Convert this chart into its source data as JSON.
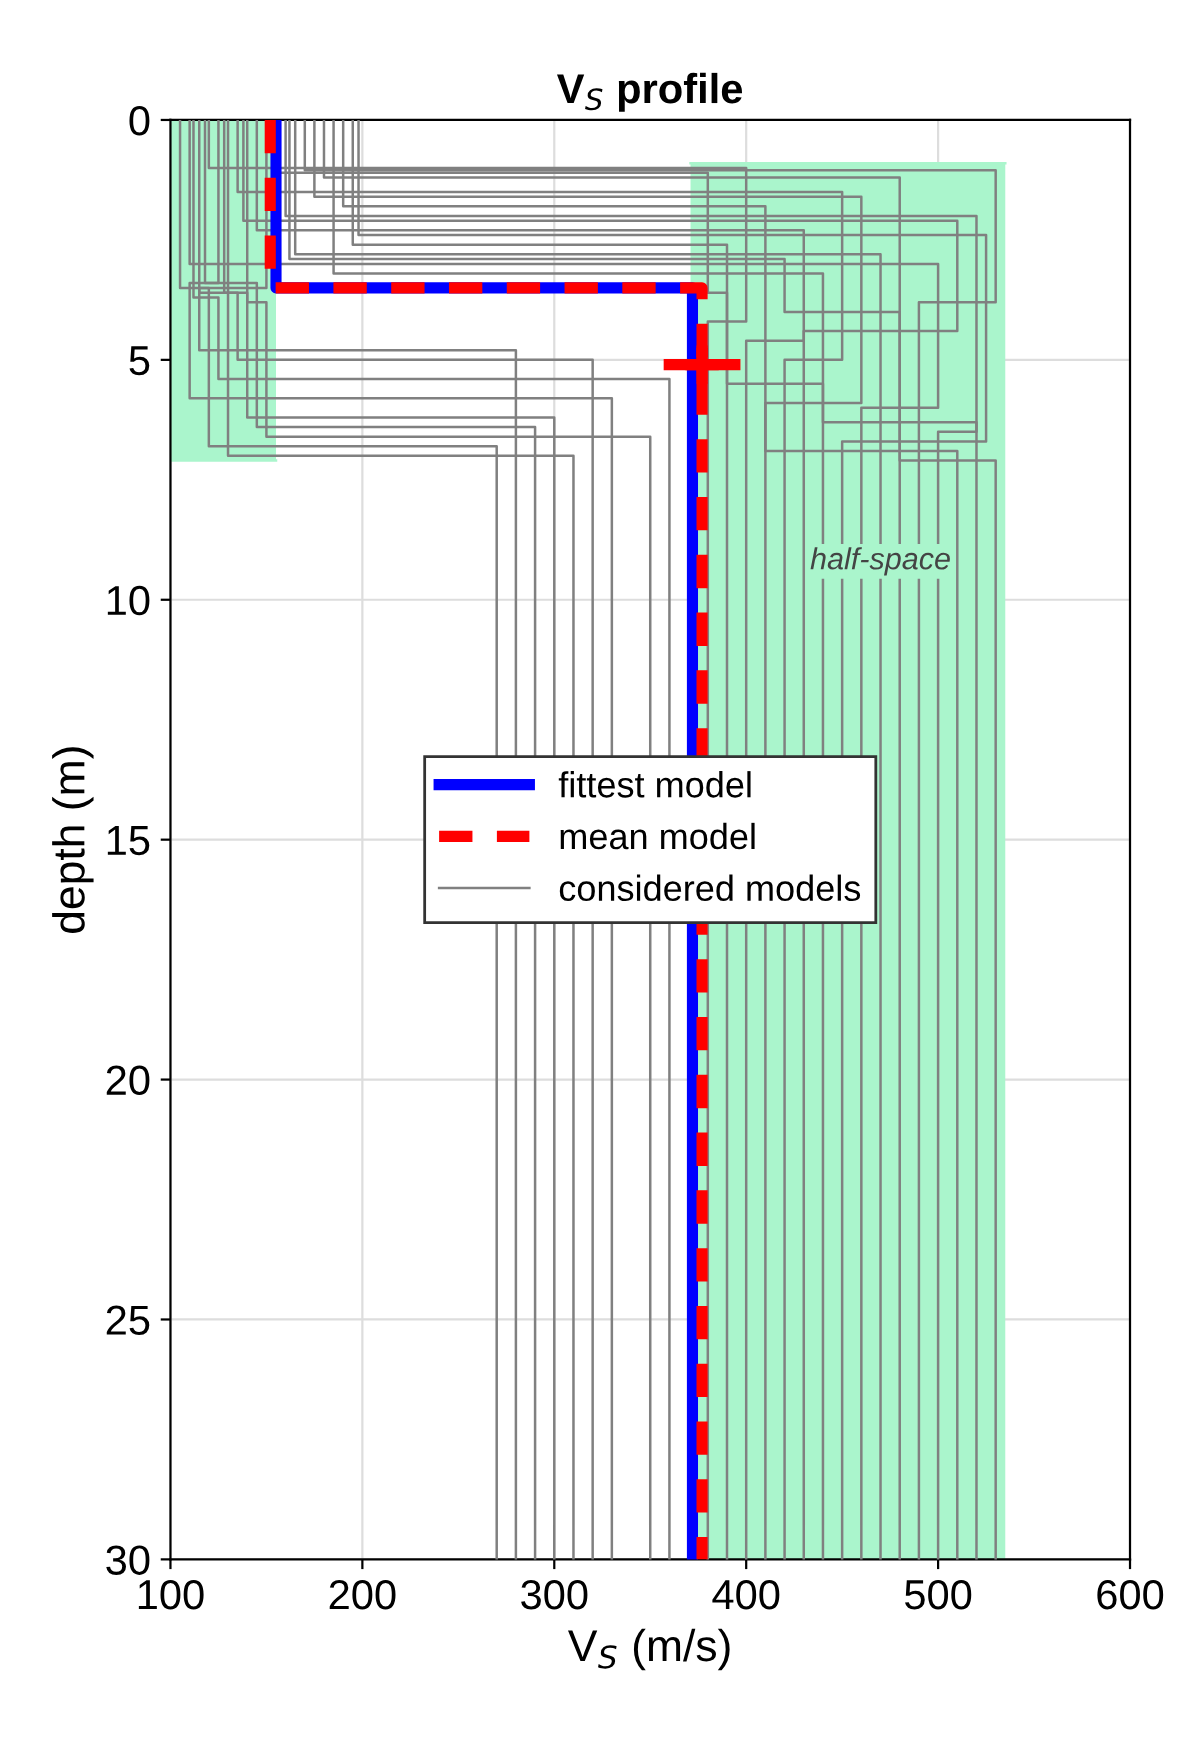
{
  "chart_data": {
    "type": "line",
    "title": "V$_{S}$ profile",
    "xlabel": "V$_{S}$ (m/s)",
    "ylabel": "depth (m)",
    "xlim": [
      100,
      600
    ],
    "xticks": [
      100,
      200,
      300,
      400,
      500,
      600
    ],
    "ylim": [
      30,
      0
    ],
    "yticks": [
      0,
      5,
      10,
      15,
      20,
      25,
      30
    ],
    "grid": true,
    "legend": "center",
    "annotations": [
      {
        "text": "half-space",
        "x": 470,
        "y": 9.2
      }
    ],
    "series": [
      {
        "type": "line",
        "color": "#aaf5cc",
        "x": [
          100,
          155
        ],
        "values": [
          7.1,
          7.1
        ],
        "lower": [
          0,
          0
        ],
        "upper": [
          7.1,
          7.1
        ]
      },
      {
        "type": "line",
        "color": "#aaf5cc",
        "x": [
          371,
          535
        ],
        "values": [
          0.9,
          0.9
        ],
        "lower": [
          0.9,
          0.9
        ],
        "upper": [
          30,
          30
        ]
      },
      {
        "name": "considered models",
        "color": "#808080",
        "x": [
          120,
          120,
          400,
          400,
          380,
          380
        ],
        "values": [
          0,
          1.0,
          1.0,
          4.2,
          4.2,
          30
        ]
      },
      {
        "color": "#808080",
        "x": [
          135,
          135,
          450,
          450,
          420,
          420
        ],
        "values": [
          0,
          1.5,
          1.5,
          5.0,
          5.0,
          30
        ]
      },
      {
        "color": "#808080",
        "x": [
          160,
          160,
          520,
          520,
          500,
          500
        ],
        "values": [
          0,
          2.0,
          2.0,
          6.5,
          6.5,
          30
        ]
      },
      {
        "color": "#808080",
        "x": [
          180,
          180,
          480,
          480,
          530,
          530
        ],
        "values": [
          0,
          1.2,
          1.2,
          7.1,
          7.1,
          30
        ]
      },
      {
        "color": "#808080",
        "x": [
          195,
          195,
          390,
          390,
          440,
          440
        ],
        "values": [
          0,
          2.6,
          2.6,
          5.5,
          5.5,
          30
        ]
      },
      {
        "color": "#808080",
        "x": [
          110,
          110,
          500,
          500,
          460,
          460
        ],
        "values": [
          0,
          3.0,
          3.0,
          6.0,
          6.0,
          30
        ]
      },
      {
        "color": "#808080",
        "x": [
          145,
          145,
          430,
          430,
          400,
          400
        ],
        "values": [
          0,
          2.3,
          2.3,
          4.6,
          4.6,
          30
        ]
      },
      {
        "color": "#808080",
        "x": [
          170,
          170,
          530,
          530,
          490,
          490
        ],
        "values": [
          0,
          1.05,
          1.05,
          3.8,
          3.8,
          30
        ]
      },
      {
        "color": "#808080",
        "x": [
          105,
          105,
          120,
          120,
          270,
          270
        ],
        "values": [
          0,
          3.5,
          3.5,
          6.8,
          6.8,
          30
        ]
      },
      {
        "color": "#808080",
        "x": [
          115,
          115,
          140,
          140,
          300,
          300
        ],
        "values": [
          0,
          3.6,
          3.6,
          6.2,
          6.2,
          30
        ]
      },
      {
        "color": "#808080",
        "x": [
          125,
          125,
          110,
          110,
          330,
          330
        ],
        "values": [
          0,
          3.4,
          3.4,
          5.8,
          5.8,
          30
        ]
      },
      {
        "color": "#808080",
        "x": [
          140,
          140,
          150,
          150,
          350,
          350
        ],
        "values": [
          0,
          3.8,
          3.8,
          6.6,
          6.6,
          30
        ]
      },
      {
        "color": "#808080",
        "x": [
          130,
          130,
          130,
          130,
          310,
          310
        ],
        "values": [
          0,
          3.3,
          3.3,
          7.0,
          7.0,
          30
        ]
      },
      {
        "color": "#808080",
        "x": [
          150,
          150,
          115,
          115,
          280,
          280
        ],
        "values": [
          0,
          3.5,
          3.5,
          4.8,
          4.8,
          30
        ]
      },
      {
        "color": "#808080",
        "x": [
          190,
          190,
          410,
          410,
          510,
          510
        ],
        "values": [
          0,
          1.8,
          1.8,
          6.9,
          6.9,
          30
        ]
      },
      {
        "color": "#808080",
        "x": [
          165,
          165,
          470,
          470,
          470,
          470
        ],
        "values": [
          0,
          2.8,
          2.8,
          5.2,
          5.2,
          30
        ]
      },
      {
        "color": "#808080",
        "x": [
          155,
          155,
          380,
          380,
          390,
          390
        ],
        "values": [
          0,
          1.1,
          1.1,
          3.6,
          3.6,
          30
        ]
      },
      {
        "color": "#808080",
        "x": [
          185,
          185,
          440,
          440,
          520,
          520
        ],
        "values": [
          0,
          3.2,
          3.2,
          6.3,
          6.3,
          30
        ]
      },
      {
        "color": "#808080",
        "x": [
          112,
          112,
          125,
          125,
          360,
          360
        ],
        "values": [
          0,
          3.7,
          3.7,
          5.4,
          5.4,
          30
        ]
      },
      {
        "color": "#808080",
        "x": [
          138,
          138,
          510,
          510,
          430,
          430
        ],
        "values": [
          0,
          2.1,
          2.1,
          4.4,
          4.4,
          30
        ]
      },
      {
        "color": "#808080",
        "x": [
          175,
          175,
          460,
          460,
          410,
          410
        ],
        "values": [
          0,
          1.6,
          1.6,
          5.9,
          5.9,
          30
        ]
      },
      {
        "color": "#808080",
        "x": [
          198,
          198,
          525,
          525,
          450,
          450
        ],
        "values": [
          0,
          2.4,
          2.4,
          6.7,
          6.7,
          30
        ]
      },
      {
        "color": "#808080",
        "x": [
          118,
          118,
          145,
          145,
          290,
          290
        ],
        "values": [
          0,
          3.4,
          3.4,
          6.4,
          6.4,
          30
        ]
      },
      {
        "color": "#808080",
        "x": [
          128,
          128,
          135,
          135,
          320,
          320
        ],
        "values": [
          0,
          3.6,
          3.6,
          5.0,
          5.0,
          30
        ]
      },
      {
        "color": "#808080",
        "x": [
          162,
          162,
          420,
          420,
          480,
          480
        ],
        "values": [
          0,
          2.9,
          2.9,
          4.0,
          4.0,
          30
        ]
      },
      {
        "name": "fittest model",
        "color": "#0000ff",
        "line_style": "solid",
        "x": [
          155,
          155,
          372,
          372
        ],
        "values": [
          0,
          3.5,
          3.5,
          30
        ]
      },
      {
        "name": "mean model",
        "color": "#ff0000",
        "line_style": "dashed",
        "x": [
          152,
          152,
          377,
          377
        ],
        "values": [
          0,
          3.5,
          3.5,
          30
        ]
      },
      {
        "type": "scatter",
        "color": "#ff0000",
        "marker": "cross",
        "x": [
          377
        ],
        "values": [
          5.1
        ],
        "errors": [
          0.4
        ],
        "xerrors": [
          20
        ]
      }
    ]
  }
}
